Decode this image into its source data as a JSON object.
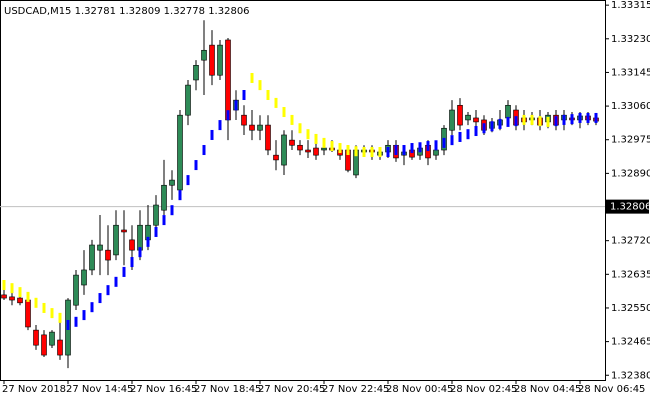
{
  "chart_data": {
    "type": "candlestick",
    "title": "USDCAD,M15  1.32781 1.32809 1.32778 1.32806",
    "categories": [
      "27 Nov 2018",
      null,
      null,
      null,
      null,
      null,
      null,
      null,
      "27 Nov 14:45",
      null,
      null,
      null,
      null,
      null,
      null,
      null,
      "27 Nov 16:45",
      null,
      null,
      null,
      null,
      null,
      null,
      null,
      "27 Nov 18:45",
      null,
      null,
      null,
      null,
      null,
      null,
      null,
      "27 Nov 20:45",
      null,
      null,
      null,
      null,
      null,
      null,
      null,
      "27 Nov 22:45",
      null,
      null,
      null,
      null,
      null,
      null,
      null,
      "28 Nov 00:45",
      null,
      null,
      null,
      null,
      null,
      null,
      null,
      "28 Nov 02:45",
      null,
      null,
      null,
      null,
      null,
      null,
      null,
      "28 Nov 04:45",
      null,
      null,
      null,
      null,
      null,
      null,
      null,
      "28 Nov 06:45",
      null,
      null
    ],
    "open": [
      1.32583,
      1.32578,
      1.32575,
      1.3257,
      1.32494,
      1.32482,
      1.32456,
      1.32469,
      1.32431,
      1.32557,
      1.32608,
      1.32646,
      1.32696,
      1.32696,
      1.32684,
      1.32747,
      1.32722,
      1.32696,
      1.32722,
      1.32759,
      1.32797,
      1.3286,
      1.32848,
      1.33037,
      1.33126,
      1.33176,
      1.33214,
      1.33138,
      1.33227,
      1.3305,
      1.33037,
      1.33012,
      1.32999,
      1.33012,
      1.32936,
      1.32911,
      1.32974,
      1.32961,
      1.32949,
      1.32954,
      1.32949,
      1.32954,
      1.32949,
      1.32949,
      1.32886,
      1.32944,
      1.32949,
      1.32936,
      1.32944,
      1.32961,
      1.32936,
      1.32949,
      1.32936,
      1.32961,
      1.32936,
      1.32949,
      1.32999,
      1.33062,
      1.33025,
      1.3303,
      1.33025,
      1.33004,
      1.33012,
      1.3303,
      1.3305,
      1.3303,
      1.33025,
      1.3303,
      1.3302,
      1.33037,
      1.33025,
      1.3303,
      1.33025,
      1.33035,
      1.3303
    ],
    "high": [
      1.32608,
      1.326,
      1.32595,
      1.32583,
      1.32507,
      1.32494,
      1.32494,
      1.32515,
      1.32575,
      1.32646,
      1.32696,
      1.32722,
      1.32785,
      1.32759,
      1.32797,
      1.32797,
      1.32759,
      1.32797,
      1.3281,
      1.32835,
      1.32924,
      1.32898,
      1.3305,
      1.33126,
      1.33176,
      1.33277,
      1.33252,
      1.33227,
      1.33232,
      1.331,
      1.33062,
      1.3305,
      1.33037,
      1.33037,
      1.32974,
      1.32999,
      1.32999,
      1.32974,
      1.32974,
      1.32974,
      1.32961,
      1.32974,
      1.32961,
      1.32961,
      1.32961,
      1.32961,
      1.32961,
      1.32954,
      1.32974,
      1.32974,
      1.32954,
      1.32961,
      1.32961,
      1.32974,
      1.32961,
      1.33012,
      1.33075,
      1.3308,
      1.33045,
      1.3305,
      1.33037,
      1.3303,
      1.3305,
      1.33075,
      1.33062,
      1.3305,
      1.33045,
      1.3305,
      1.33045,
      1.3305,
      1.3305,
      1.33045,
      1.33045,
      1.33045,
      1.33037
    ],
    "low": [
      1.3257,
      1.32557,
      1.32557,
      1.32494,
      1.32444,
      1.32426,
      1.32449,
      1.32419,
      1.32398,
      1.32545,
      1.32583,
      1.32633,
      1.32633,
      1.32633,
      1.32671,
      1.32658,
      1.32646,
      1.32671,
      1.32696,
      1.32734,
      1.32785,
      1.32823,
      1.32835,
      1.33012,
      1.331,
      1.33088,
      1.33113,
      1.33126,
      1.32974,
      1.33025,
      1.32987,
      1.32974,
      1.32974,
      1.32936,
      1.32898,
      1.32886,
      1.32949,
      1.32936,
      1.32929,
      1.32924,
      1.32936,
      1.32944,
      1.32924,
      1.32893,
      1.32878,
      1.32936,
      1.32924,
      1.32924,
      1.32929,
      1.32919,
      1.32911,
      1.32924,
      1.32924,
      1.32911,
      1.32924,
      1.32936,
      1.32987,
      1.32999,
      1.33012,
      1.32999,
      1.32987,
      1.32994,
      1.32999,
      1.33012,
      1.32999,
      1.32999,
      1.33012,
      1.32999,
      1.33004,
      1.32999,
      1.32999,
      1.33012,
      1.33004,
      1.33012,
      1.33012
    ],
    "close": [
      1.32575,
      1.3257,
      1.32563,
      1.32502,
      1.32456,
      1.32431,
      1.32489,
      1.32431,
      1.3257,
      1.32633,
      1.32646,
      1.32709,
      1.32709,
      1.32671,
      1.32759,
      1.32742,
      1.32696,
      1.32759,
      1.32759,
      1.3281,
      1.3286,
      1.32873,
      1.33037,
      1.33113,
      1.33163,
      1.33201,
      1.33138,
      1.33214,
      1.33025,
      1.33075,
      1.33012,
      1.32999,
      1.33012,
      1.32949,
      1.32924,
      1.32987,
      1.32961,
      1.32949,
      1.32944,
      1.32936,
      1.32954,
      1.32949,
      1.32936,
      1.32898,
      1.32949,
      1.32949,
      1.32944,
      1.32944,
      1.32961,
      1.32929,
      1.32944,
      1.32931,
      1.32954,
      1.32929,
      1.32949,
      1.33004,
      1.3305,
      1.33012,
      1.33037,
      1.3302,
      1.32999,
      1.3302,
      1.33025,
      1.33062,
      1.33012,
      1.3302,
      1.3303,
      1.33012,
      1.33037,
      1.33012,
      1.33037,
      1.33025,
      1.33035,
      1.33025,
      1.33022
    ],
    "up_color": "#2e8b57",
    "down_color": "#ff0000",
    "indicator_down": {
      "color": "#ffff00",
      "values": [
        1.32608,
        1.326,
        1.3259,
        1.32578,
        1.32563,
        1.3255,
        1.32537,
        1.32525,
        null,
        null,
        null,
        null,
        null,
        null,
        null,
        null,
        null,
        null,
        null,
        null,
        null,
        null,
        null,
        null,
        null,
        null,
        null,
        null,
        null,
        null,
        null,
        1.33131,
        1.33113,
        1.33088,
        1.33068,
        1.33045,
        1.33025,
        1.33004,
        1.32989,
        1.32977,
        1.32967,
        1.32959,
        1.32954,
        1.32949,
        1.32946,
        1.32944,
        1.32944,
        1.32944,
        null,
        null,
        null,
        null,
        null,
        null,
        null,
        null,
        null,
        null,
        null,
        null,
        null,
        null,
        null,
        null,
        null,
        1.33025,
        1.33025,
        1.33022,
        1.3302,
        null,
        null,
        null,
        null,
        null,
        null
      ]
    },
    "indicator_up": {
      "color": "#0000ff",
      "values": [
        null,
        null,
        null,
        null,
        null,
        null,
        null,
        null,
        1.32507,
        1.32515,
        1.32532,
        1.32552,
        1.32575,
        1.32595,
        1.32616,
        1.32641,
        1.32666,
        1.32691,
        1.32717,
        1.32742,
        1.32772,
        1.32797,
        1.32835,
        1.32873,
        1.32911,
        1.32949,
        1.32987,
        1.33012,
        1.33037,
        1.33062,
        1.33088,
        null,
        null,
        null,
        null,
        null,
        null,
        null,
        null,
        null,
        null,
        null,
        null,
        null,
        null,
        null,
        null,
        null,
        1.32944,
        1.32949,
        1.32949,
        1.32954,
        1.32956,
        1.32959,
        1.32961,
        1.32967,
        1.32974,
        1.32982,
        1.32989,
        1.32997,
        1.33004,
        1.33009,
        1.33015,
        1.3302,
        1.33022,
        null,
        null,
        null,
        null,
        1.33022,
        1.33025,
        1.33027,
        1.3303,
        1.3303,
        1.3303
      ]
    },
    "current_price": 1.32806,
    "ylim": [
      1.32368,
      1.33328
    ],
    "yticks": [
      1.33315,
      {
        "value": 1.3323,
        "label": "1.33230"
      },
      1.33145,
      {
        "value": 1.3306,
        "label": "1.33060"
      },
      1.32975,
      {
        "value": 1.3289,
        "label": "1.32890"
      },
      {
        "value": 1.3272,
        "label": "1.32720"
      },
      1.32635,
      {
        "value": 1.3255,
        "label": "1.32550"
      },
      1.32465,
      {
        "value": 1.3238,
        "label": "1.32380"
      }
    ]
  }
}
